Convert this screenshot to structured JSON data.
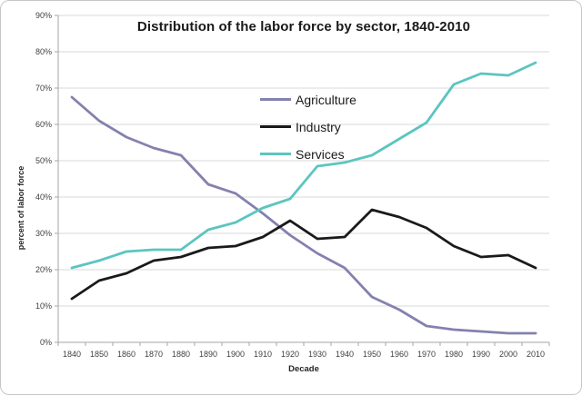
{
  "figure": {
    "background": "#ffffff",
    "border_color": "#c6c6c6"
  },
  "chart_data": {
    "type": "line",
    "title": "Distribution of the labor force by sector, 1840-2010",
    "xlabel": "Decade",
    "ylabel": "percent of labor force",
    "x": [
      "1840",
      "1850",
      "1860",
      "1870",
      "1880",
      "1890",
      "1900",
      "1910",
      "1920",
      "1930",
      "1940",
      "1950",
      "1960",
      "1970",
      "1980",
      "1990",
      "2000",
      "2010"
    ],
    "series": [
      {
        "name": "Agriculture",
        "color": "#8481AF",
        "values": [
          67.5,
          61,
          56.5,
          53.5,
          51.5,
          43.5,
          41,
          35.5,
          29.5,
          24.5,
          20.5,
          12.5,
          9,
          4.5,
          3.5,
          3,
          2.5,
          2.5
        ]
      },
      {
        "name": "Industry",
        "color": "#1A1A1A",
        "values": [
          12,
          17,
          19,
          22.5,
          23.5,
          26,
          26.5,
          29,
          33.5,
          28.5,
          29,
          36.5,
          34.5,
          31.5,
          26.5,
          23.5,
          24,
          20.5
        ]
      },
      {
        "name": "Services",
        "color": "#5BC5C0",
        "values": [
          20.5,
          22.5,
          25,
          25.5,
          25.5,
          31,
          33,
          37,
          39.5,
          48.5,
          49.5,
          51.5,
          56,
          60.5,
          71,
          74,
          73.5,
          77
        ]
      }
    ],
    "ylim": [
      0,
      90
    ],
    "ytick_step": 10,
    "ytick_suffix": "%",
    "grid": true,
    "gridline_color": "#D9D9D9",
    "axis_color": "#A6A6A6",
    "tick_label_color": "#404040",
    "legend_position": "inside-upper-middle"
  }
}
